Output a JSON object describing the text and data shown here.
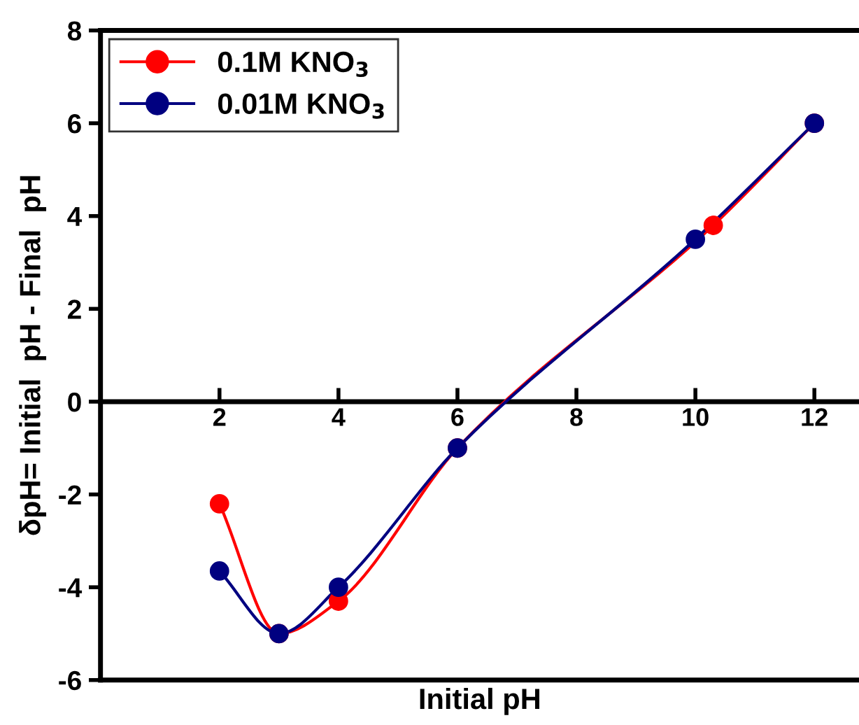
{
  "chart_data": {
    "type": "line",
    "xlabel": "Initial pH",
    "ylabel": "δpH= Initial  pH - Final  pH",
    "xlim": [
      0,
      12.75
    ],
    "xticks": [
      2,
      4,
      6,
      8,
      10,
      12
    ],
    "ylim": [
      -6,
      8
    ],
    "yticks": [
      -6,
      -4,
      -2,
      0,
      2,
      4,
      6,
      8
    ],
    "grid": false,
    "legend": "top left",
    "marker": "circle",
    "line_style": "solid",
    "series": [
      {
        "name": "0.1M KNO$_{3}$",
        "color": "#ff0000",
        "x": [
          2,
          3,
          4,
          6,
          10.3,
          12
        ],
        "values": [
          -2.2,
          -5.0,
          -4.3,
          -1.0,
          3.8,
          6.0
        ]
      },
      {
        "name": "0.01M KNO$_{3}$",
        "color": "#000080",
        "x": [
          2,
          3,
          4,
          6,
          10,
          12
        ],
        "values": [
          -3.65,
          -5.0,
          -4.0,
          -1.0,
          3.5,
          6.0
        ]
      }
    ]
  }
}
